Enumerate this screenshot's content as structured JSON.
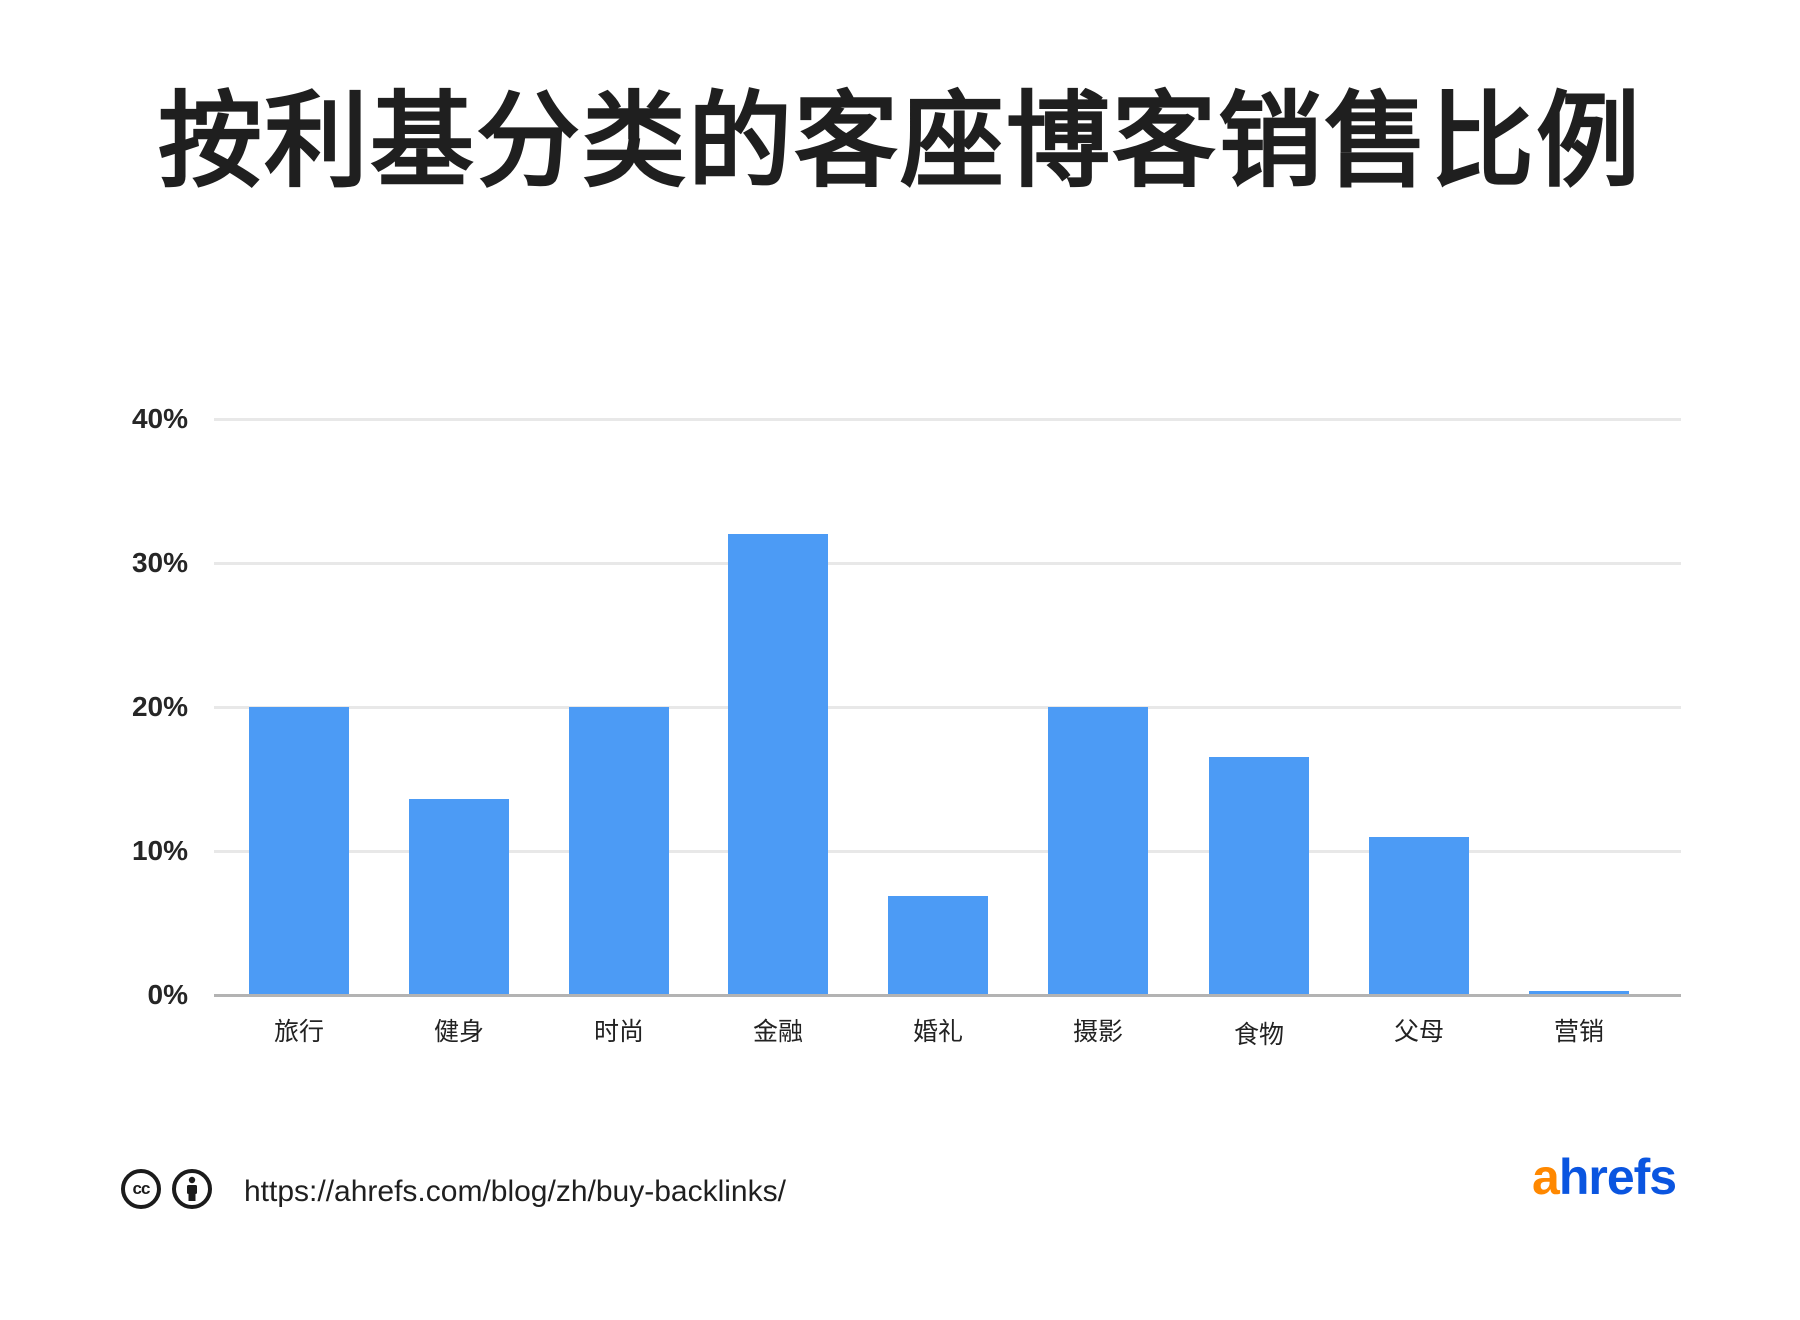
{
  "title": "按利基分类的客座博客销售比例",
  "chart_data": {
    "type": "bar",
    "title": "按利基分类的客座博客销售比例",
    "categories": [
      "旅行",
      "健身",
      "时尚",
      "金融",
      "婚礼",
      "摄影",
      "食物",
      "父母",
      "营销"
    ],
    "values": [
      20,
      13.6,
      20,
      32,
      6.9,
      20,
      16.5,
      11,
      0.3
    ],
    "xlabel": "",
    "ylabel": "",
    "ylim": [
      0,
      40
    ],
    "yticks": [
      "0%",
      "10%",
      "20%",
      "30%",
      "40%"
    ],
    "grid": true,
    "legend": null,
    "bar_color": "#4c9bf5"
  },
  "footer": {
    "url": "https://ahrefs.com/blog/zh/buy-backlinks/",
    "cc_icon": "cc-icon",
    "cc_text": "cc",
    "attribution_icon": "person-icon",
    "logo": {
      "a": "a",
      "rest": "hrefs",
      "a_color": "#ff8800",
      "rest_color": "#0a55e0"
    }
  }
}
